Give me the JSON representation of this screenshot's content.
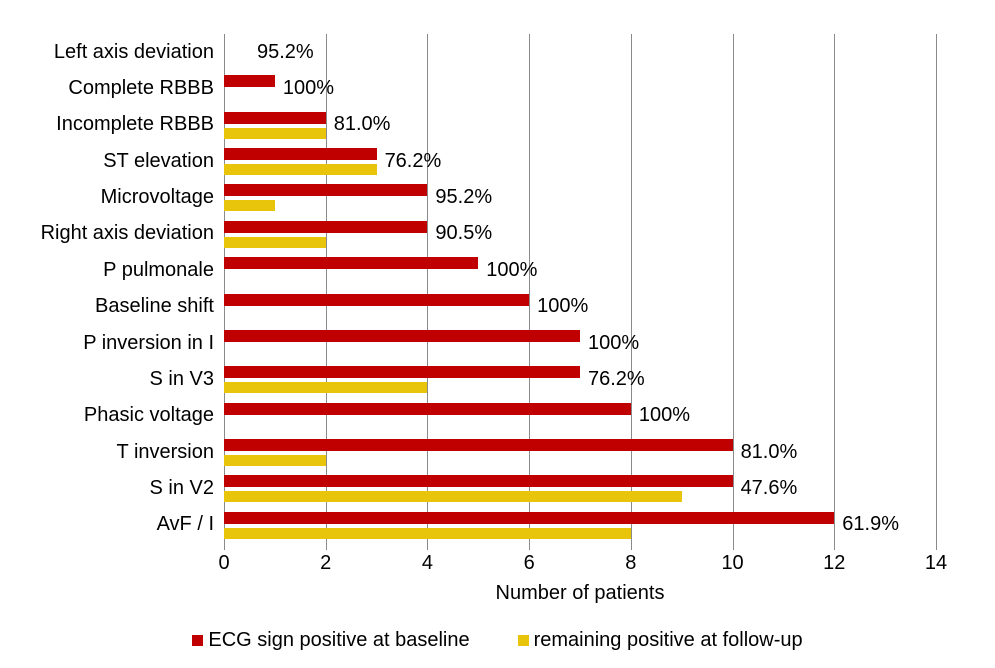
{
  "chart_data": {
    "type": "bar",
    "orientation": "horizontal",
    "title": "",
    "xlabel": "Number of patients",
    "xlim": [
      0,
      14
    ],
    "x_ticks": [
      0,
      2,
      4,
      6,
      8,
      10,
      12,
      14
    ],
    "grid": "vertical",
    "legend_position": "bottom",
    "categories": [
      "Left axis deviation",
      "Complete RBBB",
      "Incomplete RBBB",
      "ST elevation",
      "Microvoltage",
      "Right axis deviation",
      "P pulmonale",
      "Baseline shift",
      "P inversion in I",
      "S in V3",
      "Phasic voltage",
      "T inversion",
      "S in V2",
      "AvF / I"
    ],
    "series": [
      {
        "name": "ECG sign positive at baseline",
        "color": "#C00000",
        "values": [
          0,
          1,
          2,
          3,
          4,
          4,
          5,
          6,
          7,
          7,
          8,
          10,
          10,
          12
        ]
      },
      {
        "name": "remaining positive at follow-up",
        "color": "#E8C50A",
        "values": [
          0,
          0,
          2,
          3,
          1,
          2,
          0,
          0,
          0,
          4,
          0,
          2,
          9,
          8
        ]
      }
    ],
    "bar_labels": [
      "95.2%",
      "100%",
      "81.0%",
      "76.2%",
      "95.2%",
      "90.5%",
      "100%",
      "100%",
      "100%",
      "76.2%",
      "100%",
      "81.0%",
      "47.6%",
      "61.9%"
    ]
  },
  "colors": {
    "baseline_series": "#C00000",
    "followup_series": "#E8C50A",
    "gridline": "#8a8a8a",
    "text": "#000000"
  }
}
